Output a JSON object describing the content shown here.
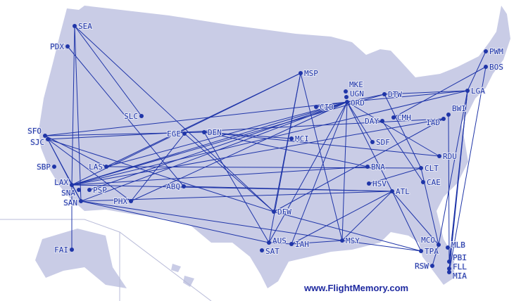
{
  "colors": {
    "land": "#c9cce6",
    "route": "#1f35a8",
    "border": "#a9accc",
    "water": "#ffffff"
  },
  "credit": "www.FlightMemory.com",
  "airports": [
    "SEA",
    "PDX",
    "SFO",
    "SJC",
    "SBP",
    "LAX",
    "SNA",
    "PSP",
    "SAN",
    "LAS",
    "SLC",
    "EGE",
    "DEN",
    "PHX",
    "ABQ",
    "MSP",
    "MCI",
    "DFW",
    "AUS",
    "SAT",
    "IAH",
    "MSY",
    "MKE",
    "UGN",
    "ORD",
    "CID",
    "DTW",
    "DAY",
    "CMH",
    "SDF",
    "BNA",
    "HSV",
    "ATL",
    "CLT",
    "CAE",
    "RDU",
    "BWI",
    "IAD",
    "LGA",
    "PWM",
    "BOS",
    "MCO",
    "MLB",
    "TPA",
    "RSW",
    "PBI",
    "FLL",
    "MIA",
    "FAI"
  ],
  "routes": [
    [
      "SEA",
      "LAX"
    ],
    [
      "SEA",
      "SAN"
    ],
    [
      "SEA",
      "SLC"
    ],
    [
      "SEA",
      "DFW"
    ],
    [
      "PDX",
      "ABQ"
    ],
    [
      "SFO",
      "ORD"
    ],
    [
      "SFO",
      "DEN"
    ],
    [
      "SFO",
      "LAS"
    ],
    [
      "SJC",
      "LAX"
    ],
    [
      "SJC",
      "SAN"
    ],
    [
      "SJC",
      "DFW"
    ],
    [
      "SJC",
      "PHX"
    ],
    [
      "SJC",
      "IAD"
    ],
    [
      "LAX",
      "ORD"
    ],
    [
      "LAX",
      "LGA"
    ],
    [
      "LAX",
      "BNA"
    ],
    [
      "LAX",
      "ATL"
    ],
    [
      "LAX",
      "DTW"
    ],
    [
      "LAX",
      "MSP"
    ],
    [
      "LAX",
      "IAD"
    ],
    [
      "LAX",
      "FAI"
    ],
    [
      "LAX",
      "SAN"
    ],
    [
      "SAN",
      "ORD"
    ],
    [
      "SAN",
      "ATL"
    ],
    [
      "SAN",
      "AUS"
    ],
    [
      "SAN",
      "MSY"
    ],
    [
      "PSP",
      "ORD"
    ],
    [
      "LAS",
      "CLT"
    ],
    [
      "LAS",
      "MSP"
    ],
    [
      "LAS",
      "ORD"
    ],
    [
      "PHX",
      "EGE"
    ],
    [
      "PHX",
      "ORD"
    ],
    [
      "DEN",
      "RDU"
    ],
    [
      "DEN",
      "BNA"
    ],
    [
      "DEN",
      "AUS"
    ],
    [
      "DEN",
      "MCI"
    ],
    [
      "EGE",
      "DFW"
    ],
    [
      "ABQ",
      "ATL"
    ],
    [
      "MSP",
      "DFW"
    ],
    [
      "MSP",
      "MSY"
    ],
    [
      "MSP",
      "AUS"
    ],
    [
      "CID",
      "ORD"
    ],
    [
      "ORD",
      "LGA"
    ],
    [
      "ORD",
      "DTW"
    ],
    [
      "ORD",
      "ATL"
    ],
    [
      "ORD",
      "MSY"
    ],
    [
      "ORD",
      "IAH"
    ],
    [
      "ORD",
      "SDF"
    ],
    [
      "ORD",
      "RDU"
    ],
    [
      "ORD",
      "AUS"
    ],
    [
      "DTW",
      "LGA"
    ],
    [
      "DTW",
      "CLT"
    ],
    [
      "DAY",
      "CAE"
    ],
    [
      "CMH",
      "BOS"
    ],
    [
      "DFW",
      "TPA"
    ],
    [
      "DFW",
      "IAD"
    ],
    [
      "AUS",
      "IAH"
    ],
    [
      "IAH",
      "MSY"
    ],
    [
      "IAH",
      "ATL"
    ],
    [
      "MSY",
      "ATL"
    ],
    [
      "ATL",
      "TPA"
    ],
    [
      "ATL",
      "MCO"
    ],
    [
      "CLT",
      "HSV"
    ],
    [
      "CLT",
      "MCO"
    ],
    [
      "LGA",
      "MCO"
    ],
    [
      "LGA",
      "PBI"
    ],
    [
      "LGA",
      "MIA"
    ],
    [
      "LGA",
      "FLL"
    ],
    [
      "BOS",
      "MIA"
    ],
    [
      "BWI",
      "PBI"
    ],
    [
      "PWM",
      "LGA"
    ],
    [
      "TPA",
      "MSY"
    ],
    [
      "RSW",
      "MCO"
    ]
  ]
}
